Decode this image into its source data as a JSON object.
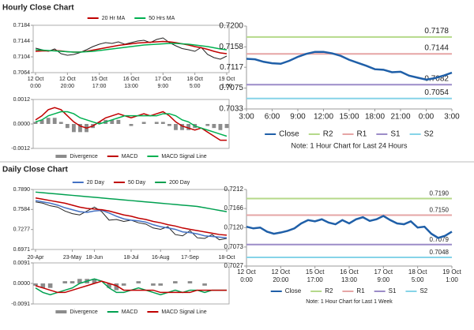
{
  "sections": [
    {
      "title": "Hourly Close Chart",
      "chart_data": [
        {
          "type": "line",
          "categories": [
            [
              "12 Oct",
              "0:00"
            ],
            null,
            null,
            null,
            null,
            [
              "12 Oct",
              "20:00"
            ],
            null,
            null,
            null,
            null,
            [
              "15 Oct",
              "17:00"
            ],
            null,
            null,
            null,
            null,
            [
              "16 Oct",
              "13:00"
            ],
            null,
            null,
            null,
            null,
            [
              "17 Oct",
              "9:00"
            ],
            null,
            null,
            null,
            null,
            [
              "18 Oct",
              "5:00"
            ],
            null,
            null,
            null,
            null,
            [
              "19 Oct",
              "1:00"
            ]
          ],
          "series": [
            {
              "color": "#222222",
              "values": [
                0.7126,
                0.7122,
                0.7118,
                0.7124,
                0.7112,
                0.7108,
                0.711,
                0.7115,
                0.7122,
                0.713,
                0.7136,
                0.714,
                0.7138,
                0.7142,
                0.7136,
                0.714,
                0.7144,
                0.7146,
                0.714,
                0.7148,
                0.7152,
                0.714,
                0.7132,
                0.7125,
                0.7122,
                0.7118,
                0.7128,
                0.711,
                0.7102,
                0.7098,
                0.7106
              ]
            },
            {
              "name": "20 Hr MA",
              "color": "#c00000",
              "values": [
                0.7118,
                0.7119,
                0.7119,
                0.712,
                0.7119,
                0.7117,
                0.7116,
                0.7116,
                0.7118,
                0.7121,
                0.7124,
                0.7127,
                0.713,
                0.7133,
                0.7135,
                0.7137,
                0.7139,
                0.714,
                0.7141,
                0.7142,
                0.7143,
                0.7142,
                0.714,
                0.7137,
                0.7134,
                0.713,
                0.7127,
                0.7123,
                0.7118,
                0.7114,
                0.7112
              ]
            },
            {
              "name": "50 Hrs MA",
              "color": "#00b050",
              "values": [
                0.7122,
                0.7121,
                0.712,
                0.7119,
                0.7118,
                0.7117,
                0.7116,
                0.7116,
                0.7117,
                0.7118,
                0.712,
                0.7122,
                0.7124,
                0.7126,
                0.7128,
                0.713,
                0.7132,
                0.7134,
                0.7135,
                0.7136,
                0.7137,
                0.7138,
                0.7138,
                0.7137,
                0.7136,
                0.7134,
                0.7132,
                0.713,
                0.7127,
                0.7124,
                0.7122
              ]
            }
          ],
          "ylim": [
            0.7064,
            0.7184
          ],
          "yticks": [
            0.7064,
            0.7104,
            0.7144,
            0.7184
          ],
          "legend": "top"
        },
        {
          "type": "line",
          "series": [
            {
              "name": "Divergence",
              "type": "bar",
              "color": "#8c8c8c",
              "values": [
                0.0001,
                0.0002,
                0.0003,
                0.0003,
                0.0001,
                -0.0002,
                -0.0004,
                -0.0004,
                -0.0004,
                -0.0002,
                0.0001,
                0.0002,
                0.0002,
                0.0002,
                0,
                -0.0001,
                0,
                0.0001,
                0,
                0.0001,
                0.0001,
                -0.0001,
                -0.0003,
                -0.0003,
                -0.0003,
                -0.0002,
                0,
                -0.0001,
                -0.0002,
                -0.0003,
                -0.0002
              ]
            },
            {
              "name": "MACD",
              "color": "#c00000",
              "values": [
                0.0002,
                0.0004,
                0.0007,
                0.0008,
                0.0007,
                0.0004,
                0.0001,
                -0.0001,
                -0.0002,
                -0.0001,
                0.0001,
                0.0003,
                0.0004,
                0.0005,
                0.0004,
                0.0003,
                0.0004,
                0.0005,
                0.0004,
                0.0005,
                0.0006,
                0.0004,
                0.0001,
                -0.0001,
                -0.0002,
                -0.0003,
                -0.0002,
                -0.0004,
                -0.0006,
                -0.0008,
                -0.0008
              ]
            },
            {
              "name": "MACD Signal Line",
              "color": "#00b050",
              "values": [
                0.0001,
                0.0002,
                0.0004,
                0.0005,
                0.0006,
                0.0006,
                0.0005,
                0.0003,
                0.0002,
                0.0001,
                0,
                0.0001,
                0.0002,
                0.0003,
                0.0004,
                0.0004,
                0.0004,
                0.0004,
                0.0004,
                0.0004,
                0.0005,
                0.0005,
                0.0004,
                0.0002,
                0.0001,
                -0.0001,
                -0.0002,
                -0.0003,
                -0.0004,
                -0.0005,
                -0.0006
              ]
            }
          ],
          "ylim": [
            -0.0012,
            0.0012
          ],
          "yticks": [
            -0.0012,
            {
              "value": 0,
              "label": "0.0000"
            },
            0.0012
          ],
          "legend": "bottom"
        },
        {
          "type": "line",
          "categories": [
            "3:00",
            null,
            null,
            "6:00",
            null,
            null,
            "9:00",
            null,
            null,
            "12:00",
            null,
            null,
            "15:00",
            null,
            null,
            "18:00",
            null,
            null,
            "21:00",
            null,
            null,
            "0:00",
            null,
            null,
            "3:00"
          ],
          "series": [
            {
              "name": "Close",
              "color": "#1f5fa8",
              "values": [
                0.7134,
                0.7133,
                0.7128,
                0.7125,
                0.7124,
                0.713,
                0.7138,
                0.7144,
                0.7148,
                0.7148,
                0.7145,
                0.714,
                0.7132,
                0.7126,
                0.712,
                0.7113,
                0.7112,
                0.7107,
                0.7108,
                0.71,
                0.7096,
                0.7092,
                0.7095,
                0.71,
                0.7106
              ]
            }
          ],
          "levels": [
            {
              "name": "R2",
              "color": "#b5d98a",
              "values": [
                0.7178
              ]
            },
            {
              "name": "R1",
              "color": "#e6a5a5",
              "values": [
                0.7144
              ]
            },
            {
              "name": "S1",
              "color": "#9c8cc8",
              "values": [
                0.7082
              ]
            },
            {
              "name": "S2",
              "color": "#86d4e8",
              "values": [
                0.7054
              ]
            }
          ],
          "ylim": [
            0.7033,
            0.72
          ],
          "yticks": [
            0.7033,
            0.7075,
            0.7117,
            0.7158,
            {
              "value": 0.72,
              "label": "0.7200"
            }
          ],
          "legend": "bottom",
          "note": "Note: 1 Hour Chart for Last 24 Hours"
        }
      ]
    },
    {
      "title": "Daily Close Chart",
      "chart_data": [
        {
          "type": "line",
          "categories": [
            "20-Apr",
            null,
            null,
            null,
            null,
            "23-May",
            null,
            null,
            "18-Jun",
            null,
            null,
            null,
            null,
            "18-Jul",
            null,
            null,
            null,
            "16-Aug",
            null,
            null,
            null,
            "17-Sep",
            null,
            null,
            null,
            null,
            "18-Oct"
          ],
          "series": [
            {
              "color": "#222222",
              "values": [
                0.77,
                0.768,
                0.764,
                0.762,
                0.756,
                0.752,
                0.75,
                0.756,
                0.762,
                0.755,
                0.742,
                0.743,
                0.74,
                0.742,
                0.738,
                0.736,
                0.73,
                0.728,
                0.732,
                0.72,
                0.718,
                0.726,
                0.715,
                0.714,
                0.72,
                0.712,
                0.714
              ]
            },
            {
              "name": "20 Day",
              "color": "#4472c4",
              "values": [
                0.772,
                0.77,
                0.768,
                0.765,
                0.761,
                0.758,
                0.755,
                0.754,
                0.756,
                0.757,
                0.753,
                0.748,
                0.744,
                0.742,
                0.741,
                0.739,
                0.735,
                0.732,
                0.73,
                0.728,
                0.724,
                0.723,
                0.721,
                0.718,
                0.717,
                0.716,
                0.715
              ]
            },
            {
              "name": "50 Day",
              "color": "#c00000",
              "values": [
                0.776,
                0.774,
                0.772,
                0.77,
                0.768,
                0.765,
                0.762,
                0.76,
                0.759,
                0.758,
                0.756,
                0.753,
                0.75,
                0.748,
                0.745,
                0.743,
                0.74,
                0.738,
                0.735,
                0.733,
                0.73,
                0.728,
                0.726,
                0.724,
                0.722,
                0.72,
                0.719
              ]
            },
            {
              "name": "200 Day",
              "color": "#00a050",
              "values": [
                0.785,
                0.784,
                0.783,
                0.782,
                0.781,
                0.78,
                0.779,
                0.778,
                0.777,
                0.776,
                0.775,
                0.774,
                0.773,
                0.772,
                0.771,
                0.77,
                0.769,
                0.768,
                0.767,
                0.766,
                0.765,
                0.764,
                0.763,
                0.761,
                0.759,
                0.757,
                0.755
              ]
            }
          ],
          "ylim": [
            0.6971,
            0.789
          ],
          "yticks": [
            0.6971,
            0.7277,
            0.7584,
            {
              "value": 0.789,
              "label": "0.7890"
            }
          ],
          "legend": "top"
        },
        {
          "type": "line",
          "series": [
            {
              "name": "Divergence",
              "type": "bar",
              "color": "#8c8c8c",
              "values": [
                -0.001,
                -0.002,
                -0.002,
                0,
                0.001,
                0.001,
                0.002,
                0.002,
                0.002,
                0,
                -0.002,
                -0.003,
                -0.001,
                0,
                0.001,
                0,
                -0.001,
                -0.001,
                0,
                0.001,
                0,
                0.001,
                0,
                -0.001,
                0,
                0,
                0
              ]
            },
            {
              "name": "MACD",
              "color": "#00a050",
              "values": [
                -0.002,
                -0.004,
                -0.005,
                -0.004,
                -0.003,
                -0.002,
                0,
                0.001,
                0.002,
                0.001,
                -0.002,
                -0.004,
                -0.004,
                -0.003,
                -0.002,
                -0.003,
                -0.004,
                -0.005,
                -0.004,
                -0.003,
                -0.004,
                -0.003,
                -0.003,
                -0.004,
                -0.003,
                -0.003,
                -0.003
              ]
            },
            {
              "name": "MACD Signal Line",
              "color": "#c00000",
              "values": [
                -0.001,
                -0.002,
                -0.003,
                -0.004,
                -0.004,
                -0.003,
                -0.002,
                -0.001,
                0,
                0.001,
                0,
                -0.001,
                -0.003,
                -0.003,
                -0.003,
                -0.003,
                -0.003,
                -0.004,
                -0.004,
                -0.004,
                -0.004,
                -0.004,
                -0.003,
                -0.003,
                -0.003,
                -0.003,
                -0.003
              ]
            }
          ],
          "ylim": [
            -0.0091,
            0.0091
          ],
          "yticks": [
            -0.0091,
            {
              "value": 0,
              "label": "0.0000"
            },
            0.0091
          ],
          "legend": "bottom"
        },
        {
          "type": "line",
          "categories": [
            [
              "12 Oct",
              "0:00"
            ],
            null,
            null,
            null,
            null,
            [
              "12 Oct",
              "20:00"
            ],
            null,
            null,
            null,
            null,
            [
              "15 Oct",
              "17:00"
            ],
            null,
            null,
            null,
            null,
            [
              "16 Oct",
              "13:00"
            ],
            null,
            null,
            null,
            null,
            [
              "17 Oct",
              "9:00"
            ],
            null,
            null,
            null,
            null,
            [
              "18 Oct",
              "5:00"
            ],
            null,
            null,
            null,
            null,
            [
              "19 Oct",
              "1:00"
            ]
          ],
          "series": [
            {
              "name": "Close",
              "color": "#1f5fa8",
              "values": [
                0.7122,
                0.7118,
                0.712,
                0.711,
                0.7105,
                0.7108,
                0.7112,
                0.7118,
                0.713,
                0.7138,
                0.7135,
                0.714,
                0.7132,
                0.7128,
                0.7138,
                0.713,
                0.714,
                0.7145,
                0.7136,
                0.714,
                0.7148,
                0.7138,
                0.713,
                0.7128,
                0.7135,
                0.712,
                0.7122,
                0.7105,
                0.7095,
                0.71,
                0.711
              ]
            }
          ],
          "levels": [
            {
              "name": "R2",
              "color": "#b5d98a",
              "values": [
                0.719
              ],
              "value_labels": [
                "0.7190"
              ]
            },
            {
              "name": "R1",
              "color": "#e6a5a5",
              "values": [
                0.715
              ],
              "value_labels": [
                "0.7150"
              ]
            },
            {
              "name": "S1",
              "color": "#9c8cc8",
              "values": [
                0.7079
              ]
            },
            {
              "name": "S2",
              "color": "#86d4e8",
              "values": [
                0.7048
              ]
            }
          ],
          "ylim": [
            0.7027,
            0.7212
          ],
          "yticks": [
            0.7027,
            0.7073,
            {
              "value": 0.712,
              "label": "0.7120"
            },
            0.7166,
            0.7212
          ],
          "legend": "bottom",
          "note": "Note: 1 Hour Chart for Last 1 Week"
        }
      ]
    }
  ]
}
